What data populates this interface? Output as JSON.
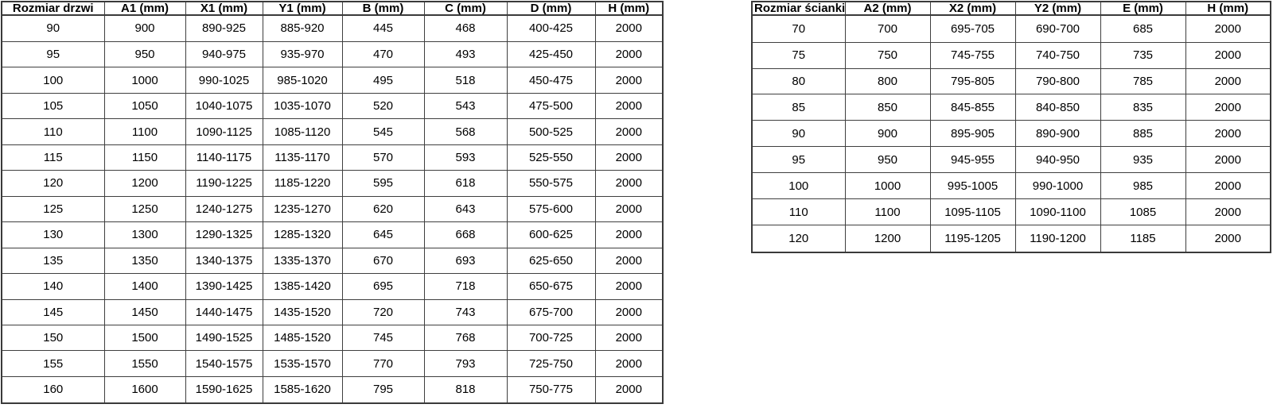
{
  "page": {
    "background": "#ffffff",
    "text_color": "#000000",
    "border_color": "#3f3f3f"
  },
  "tables": [
    {
      "name": "door-size-table",
      "title_column": "Rozmiar drzwi",
      "headers": [
        "Rozmiar drzwi",
        "A1 (mm)",
        "X1 (mm)",
        "Y1 (mm)",
        "B (mm)",
        "C (mm)",
        "D (mm)",
        "H (mm)"
      ],
      "rows": [
        [
          "90",
          "900",
          "890-925",
          "885-920",
          "445",
          "468",
          "400-425",
          "2000"
        ],
        [
          "95",
          "950",
          "940-975",
          "935-970",
          "470",
          "493",
          "425-450",
          "2000"
        ],
        [
          "100",
          "1000",
          "990-1025",
          "985-1020",
          "495",
          "518",
          "450-475",
          "2000"
        ],
        [
          "105",
          "1050",
          "1040-1075",
          "1035-1070",
          "520",
          "543",
          "475-500",
          "2000"
        ],
        [
          "110",
          "1100",
          "1090-1125",
          "1085-1120",
          "545",
          "568",
          "500-525",
          "2000"
        ],
        [
          "115",
          "1150",
          "1140-1175",
          "1135-1170",
          "570",
          "593",
          "525-550",
          "2000"
        ],
        [
          "120",
          "1200",
          "1190-1225",
          "1185-1220",
          "595",
          "618",
          "550-575",
          "2000"
        ],
        [
          "125",
          "1250",
          "1240-1275",
          "1235-1270",
          "620",
          "643",
          "575-600",
          "2000"
        ],
        [
          "130",
          "1300",
          "1290-1325",
          "1285-1320",
          "645",
          "668",
          "600-625",
          "2000"
        ],
        [
          "135",
          "1350",
          "1340-1375",
          "1335-1370",
          "670",
          "693",
          "625-650",
          "2000"
        ],
        [
          "140",
          "1400",
          "1390-1425",
          "1385-1420",
          "695",
          "718",
          "650-675",
          "2000"
        ],
        [
          "145",
          "1450",
          "1440-1475",
          "1435-1520",
          "720",
          "743",
          "675-700",
          "2000"
        ],
        [
          "150",
          "1500",
          "1490-1525",
          "1485-1520",
          "745",
          "768",
          "700-725",
          "2000"
        ],
        [
          "155",
          "1550",
          "1540-1575",
          "1535-1570",
          "770",
          "793",
          "725-750",
          "2000"
        ],
        [
          "160",
          "1600",
          "1590-1625",
          "1585-1620",
          "795",
          "818",
          "750-775",
          "2000"
        ]
      ]
    },
    {
      "name": "wall-size-table",
      "title_column": "Rozmiar ścianki",
      "headers": [
        "Rozmiar ścianki",
        "A2 (mm)",
        "X2 (mm)",
        "Y2 (mm)",
        "E (mm)",
        "H (mm)"
      ],
      "rows": [
        [
          "70",
          "700",
          "695-705",
          "690-700",
          "685",
          "2000"
        ],
        [
          "75",
          "750",
          "745-755",
          "740-750",
          "735",
          "2000"
        ],
        [
          "80",
          "800",
          "795-805",
          "790-800",
          "785",
          "2000"
        ],
        [
          "85",
          "850",
          "845-855",
          "840-850",
          "835",
          "2000"
        ],
        [
          "90",
          "900",
          "895-905",
          "890-900",
          "885",
          "2000"
        ],
        [
          "95",
          "950",
          "945-955",
          "940-950",
          "935",
          "2000"
        ],
        [
          "100",
          "1000",
          "995-1005",
          "990-1000",
          "985",
          "2000"
        ],
        [
          "110",
          "1100",
          "1095-1105",
          "1090-1100",
          "1085",
          "2000"
        ],
        [
          "120",
          "1200",
          "1195-1205",
          "1190-1200",
          "1185",
          "2000"
        ]
      ]
    }
  ]
}
